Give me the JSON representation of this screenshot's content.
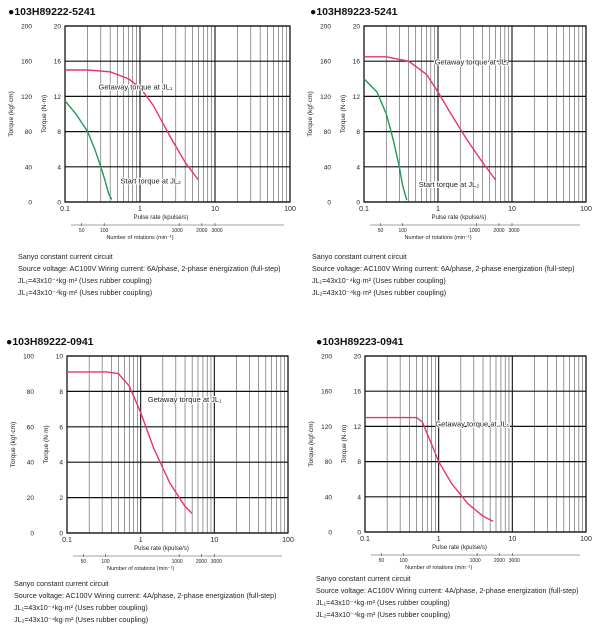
{
  "chart_data": [
    {
      "type": "line",
      "title": "●103H89222-5241",
      "xscale": "log",
      "xlim": [
        0.1,
        100
      ],
      "x_ticks": [
        "0.1",
        "1",
        "10",
        "100"
      ],
      "xlabel": "Pulse rate (kpulse/s)",
      "rpm_ticks": [
        "50",
        "100",
        "1000",
        "2000",
        "3000"
      ],
      "rpm_label": "Number of rotations (min⁻¹)",
      "ylim_inner": [
        0,
        20
      ],
      "y_ticks_inner": [
        "0",
        "4",
        "8",
        "12",
        "16",
        "20"
      ],
      "ylabel_inner": "Torque (N·m)",
      "y_ticks_outer": [
        "0",
        "40",
        "80",
        "120",
        "160",
        "200"
      ],
      "ylabel_outer": "Torque (kgf·cm)",
      "series": [
        {
          "name": "Getaway torque at JL₁",
          "color": "#e8336f",
          "x": [
            0.1,
            0.2,
            0.4,
            0.7,
            1.0,
            1.5,
            2.5,
            4.0,
            6.0
          ],
          "y": [
            15.0,
            15.0,
            14.8,
            14.0,
            13.0,
            11.0,
            7.5,
            4.5,
            2.5
          ]
        },
        {
          "name": "Start torque at JL₂",
          "color": "#1f9a55",
          "x": [
            0.1,
            0.14,
            0.2,
            0.25,
            0.3,
            0.34,
            0.38,
            0.42
          ],
          "y": [
            11.5,
            10.0,
            8.0,
            6.0,
            4.0,
            2.5,
            1.0,
            0.3
          ]
        }
      ],
      "annotations": [
        "Getaway torque at JL₁",
        "Start torque at JL₂"
      ],
      "notes": [
        "Sanyo constant current circuit",
        "Source voltage: AC100V Wiring current: 6A/phase, 2-phase energization (full-step)",
        "JL₁=43x10⁻⁴kg·m² (Uses rubber coupling)",
        "JL₂=43x10⁻⁴kg·m² (Uses rubber coupling)"
      ]
    },
    {
      "type": "line",
      "title": "●103H89223-5241",
      "xscale": "log",
      "xlim": [
        0.1,
        100
      ],
      "x_ticks": [
        "0.1",
        "1",
        "10",
        "100"
      ],
      "xlabel": "Pulse rate (kpulse/s)",
      "rpm_ticks": [
        "50",
        "100",
        "1000",
        "2000",
        "3000"
      ],
      "rpm_label": "Number of rotations (min⁻¹)",
      "ylim_inner": [
        0,
        20
      ],
      "y_ticks_inner": [
        "0",
        "4",
        "8",
        "12",
        "16",
        "20"
      ],
      "ylabel_inner": "Torque (N·m)",
      "y_ticks_outer": [
        "0",
        "40",
        "80",
        "120",
        "160",
        "200"
      ],
      "ylabel_outer": "Torque (kgf·cm)",
      "series": [
        {
          "name": "Getaway torque at JL₁",
          "color": "#e8336f",
          "x": [
            0.1,
            0.2,
            0.4,
            0.7,
            1.0,
            1.5,
            2.5,
            4.0,
            6.0
          ],
          "y": [
            16.5,
            16.5,
            16.0,
            14.5,
            12.5,
            10.0,
            7.0,
            4.5,
            2.5
          ]
        },
        {
          "name": "Start torque at JL₂",
          "color": "#1f9a55",
          "x": [
            0.1,
            0.15,
            0.2,
            0.25,
            0.3,
            0.33,
            0.36,
            0.38
          ],
          "y": [
            14.0,
            12.5,
            10.0,
            7.0,
            4.0,
            2.0,
            0.8,
            0.2
          ]
        }
      ],
      "annotations": [
        "Getaway torque at JL₁",
        "Start torque at JL₂"
      ],
      "notes": [
        "Sanyo constant current circuit",
        "Source voltage: AC100V Wiring current: 6A/phase, 2-phase energization (full-step)",
        "JL₁=43x10⁻⁴kg·m² (Uses rubber coupling)",
        "JL₂=43x10⁻⁴kg·m² (Uses rubber coupling)"
      ]
    },
    {
      "type": "line",
      "title": "●103H89222-0941",
      "xscale": "log",
      "xlim": [
        0.1,
        100
      ],
      "x_ticks": [
        "0.1",
        "1",
        "10",
        "100"
      ],
      "xlabel": "Pulse rate (kpulse/s)",
      "rpm_ticks": [
        "50",
        "100",
        "1000",
        "2000",
        "3000"
      ],
      "rpm_label": "Number of rotations (min⁻¹)",
      "ylim_inner": [
        0,
        10
      ],
      "y_ticks_inner": [
        "0",
        "2",
        "4",
        "6",
        "8",
        "10"
      ],
      "ylabel_inner": "Torque (N·m)",
      "y_ticks_outer": [
        "0",
        "20",
        "40",
        "60",
        "80",
        "100"
      ],
      "ylabel_outer": "Torque (kgf·cm)",
      "series": [
        {
          "name": "Getaway torque at JL₁",
          "color": "#e8336f",
          "x": [
            0.1,
            0.2,
            0.35,
            0.5,
            0.7,
            1.0,
            1.5,
            2.5,
            4.0,
            5.0
          ],
          "y": [
            9.1,
            9.1,
            9.1,
            9.0,
            8.3,
            6.8,
            4.8,
            2.8,
            1.5,
            1.1
          ]
        }
      ],
      "annotations": [
        "Getaway torque at JL₁"
      ],
      "notes": [
        "Sanyo constant current circuit",
        "Source voltage: AC100V Wiring current: 4A/phase, 2-phase energization (full-step)",
        "JL₁=43x10⁻⁴kg·m² (Uses rubber coupling)",
        "JL₂=43x10⁻⁴kg·m² (Uses rubber coupling)"
      ]
    },
    {
      "type": "line",
      "title": "●103H89223-0941",
      "xscale": "log",
      "xlim": [
        0.1,
        100
      ],
      "x_ticks": [
        "0.1",
        "1",
        "10",
        "100"
      ],
      "xlabel": "Pulse rate (kpulse/s)",
      "rpm_ticks": [
        "50",
        "100",
        "1000",
        "2000",
        "3000"
      ],
      "rpm_label": "Number of rotations (min⁻¹)",
      "ylim_inner": [
        0,
        20
      ],
      "y_ticks_inner": [
        "0",
        "4",
        "8",
        "12",
        "16",
        "20"
      ],
      "ylabel_inner": "Torque (N·m)",
      "y_ticks_outer": [
        "0",
        "40",
        "80",
        "120",
        "160",
        "200"
      ],
      "ylabel_outer": "Torque (kgf·cm)",
      "series": [
        {
          "name": "Getaway torque at JL₁",
          "color": "#e8336f",
          "x": [
            0.1,
            0.3,
            0.5,
            0.6,
            0.8,
            1.0,
            1.5,
            2.5,
            4.0,
            5.5
          ],
          "y": [
            13.0,
            13.0,
            13.0,
            12.5,
            10.0,
            8.0,
            5.5,
            3.2,
            1.8,
            1.2
          ]
        }
      ],
      "annotations": [
        "Getaway torque at JL₁"
      ],
      "notes": [
        "Sanyo constant current circuit",
        "Source voltage: AC100V Wiring current: 4A/phase, 2-phase energization (full-step)",
        "JL₁=43x10⁻⁴kg·m² (Uses rubber coupling)",
        "JL₂=43x10⁻⁴kg·m² (Uses rubber coupling)"
      ]
    }
  ]
}
